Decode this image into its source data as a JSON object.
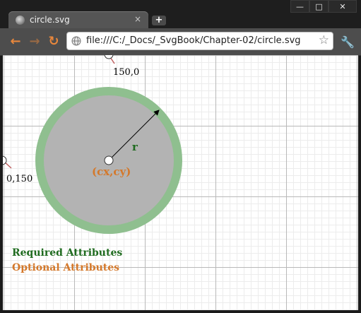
{
  "tab": {
    "title": "circle.svg",
    "close": "×"
  },
  "newtab_symbol": "+",
  "window_controls": {
    "minimize": "—",
    "maximize": "□",
    "close": "✕"
  },
  "address": {
    "url": "file:///C:/_Docs/_SvgBook/Chapter-02/circle.svg"
  },
  "svg": {
    "label_top": "150,0",
    "label_left": "0,150",
    "label_r": "r",
    "label_center": "(cx,cy)",
    "legend_required": "Required Attributes",
    "legend_optional": "Optional Attributes"
  },
  "colors": {
    "required": "#1f6b1f",
    "optional": "#d4782a",
    "circle_fill": "#b3b3b3",
    "circle_stroke": "#8fbf8f"
  }
}
